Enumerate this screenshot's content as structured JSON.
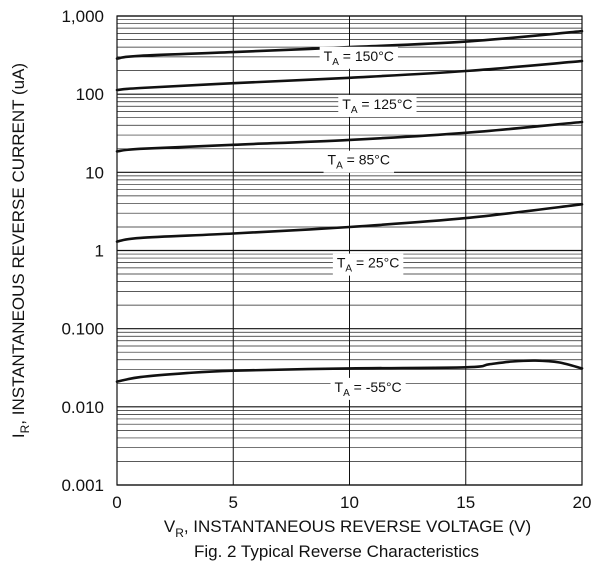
{
  "chart_data": {
    "type": "line",
    "caption": "Fig. 2 Typical Reverse Characteristics",
    "xlabel": {
      "main": "V",
      "sub": "R",
      "rest": ", INSTANTANEOUS REVERSE VOLTAGE (V)"
    },
    "ylabel": {
      "main": "I",
      "sub": "R",
      "rest": ", INSTANTANEOUS REVERSE CURRENT (uA)"
    },
    "xlim": [
      0,
      20
    ],
    "ylim": [
      0.001,
      1000
    ],
    "yscale": "log",
    "grid": true,
    "x_ticks": [
      {
        "value": 0,
        "label": "0"
      },
      {
        "value": 5,
        "label": "5"
      },
      {
        "value": 10,
        "label": "10"
      },
      {
        "value": 15,
        "label": "15"
      },
      {
        "value": 20,
        "label": "20"
      }
    ],
    "y_ticks": [
      {
        "value": 0.001,
        "label": "0.001"
      },
      {
        "value": 0.01,
        "label": "0.010"
      },
      {
        "value": 0.1,
        "label": "0.100"
      },
      {
        "value": 1,
        "label": "1"
      },
      {
        "value": 10,
        "label": "10"
      },
      {
        "value": 100,
        "label": "100"
      },
      {
        "value": 1000,
        "label": "1,000"
      }
    ],
    "series": [
      {
        "label_main": "T",
        "label_sub": "A",
        "label_rest": " = 150°C",
        "label_at": [
          10.4,
          310
        ],
        "x": [
          0,
          1,
          5,
          10,
          15,
          20
        ],
        "y": [
          285,
          310,
          345,
          400,
          470,
          640
        ]
      },
      {
        "label_main": "T",
        "label_sub": "A",
        "label_rest": " = 125°C",
        "label_at": [
          11.2,
          75
        ],
        "x": [
          0,
          1,
          5,
          10,
          15,
          20
        ],
        "y": [
          113,
          120,
          138,
          162,
          198,
          265
        ]
      },
      {
        "label_main": "T",
        "label_sub": "A",
        "label_rest": " = 85°C",
        "label_at": [
          10.4,
          14.5
        ],
        "x": [
          0,
          1,
          5,
          10,
          15,
          20
        ],
        "y": [
          18.5,
          20,
          22.5,
          26,
          32,
          44
        ]
      },
      {
        "label_main": "T",
        "label_sub": "A",
        "label_rest": " = 25°C",
        "label_at": [
          10.8,
          0.7
        ],
        "x": [
          0,
          1,
          5,
          10,
          15,
          20
        ],
        "y": [
          1.3,
          1.45,
          1.65,
          2.0,
          2.6,
          3.9
        ]
      },
      {
        "label_main": "T",
        "label_sub": "A",
        "label_rest": " = -55°C",
        "label_at": [
          10.8,
          0.018
        ],
        "x": [
          0,
          1,
          3,
          5,
          10,
          15,
          16,
          17,
          18,
          19,
          20
        ],
        "y": [
          0.021,
          0.024,
          0.027,
          0.029,
          0.031,
          0.032,
          0.035,
          0.038,
          0.039,
          0.037,
          0.031
        ]
      }
    ]
  }
}
